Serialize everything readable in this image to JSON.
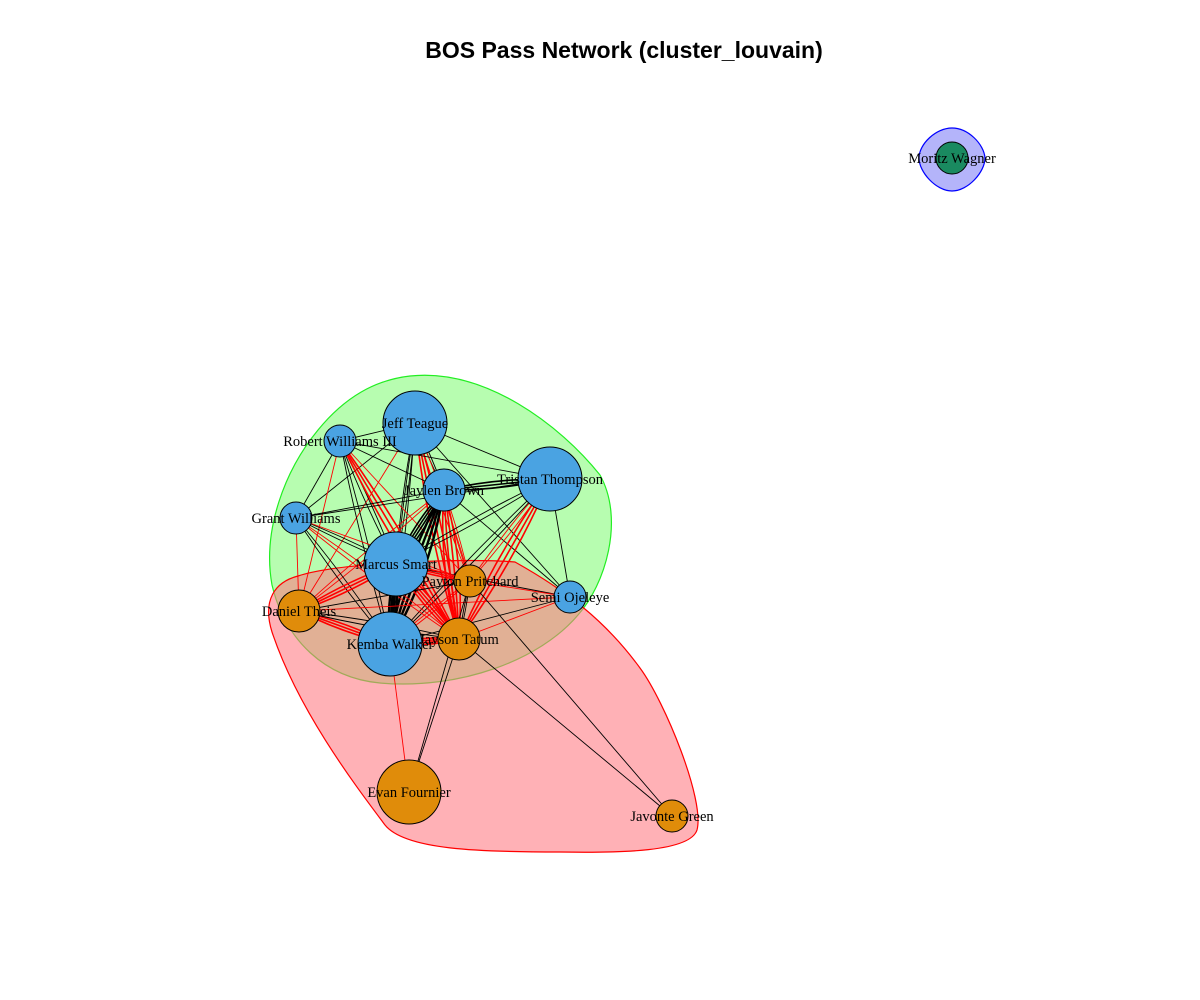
{
  "title": "BOS Pass Network (cluster_louvain)",
  "colors": {
    "cluster_green_fill": "#b7fdb0",
    "cluster_green_stroke": "#22ee22",
    "cluster_red_fill": "rgba(255,120,130,0.58)",
    "cluster_red_stroke": "#ff0000",
    "cluster_blue_fill": "#b4b4fa",
    "cluster_blue_stroke": "#0000ff",
    "node_blue": "#4aa3e2",
    "node_orange": "#e08c0a",
    "node_green": "#1a8a60",
    "edge_within": "#000000",
    "edge_between": "#ff0000"
  },
  "clusters": [
    {
      "id": "green",
      "members": [
        "Jeff Teague",
        "Robert Williams III",
        "Jaylen Brown",
        "Tristan Thompson",
        "Grant Williams",
        "Marcus Smart",
        "Semi Ojeleye",
        "Kemba Walker"
      ]
    },
    {
      "id": "red",
      "members": [
        "Daniel Theis",
        "Payton Pritchard",
        "Jayson Tatum",
        "Evan Fournier",
        "Javonte Green"
      ]
    },
    {
      "id": "blue",
      "members": [
        "Moritz Wagner"
      ]
    }
  ],
  "nodes": [
    {
      "id": "Jeff Teague",
      "label": "Jeff Teague",
      "group": "blue",
      "degree": "large"
    },
    {
      "id": "Robert Williams III",
      "label": "Robert Williams III",
      "group": "blue",
      "degree": "small"
    },
    {
      "id": "Jaylen Brown",
      "label": "Jaylen Brown",
      "group": "blue",
      "degree": "medium"
    },
    {
      "id": "Tristan Thompson",
      "label": "Tristan Thompson",
      "group": "blue",
      "degree": "large"
    },
    {
      "id": "Grant Williams",
      "label": "Grant Williams",
      "group": "blue",
      "degree": "small"
    },
    {
      "id": "Marcus Smart",
      "label": "Marcus Smart",
      "group": "blue",
      "degree": "large"
    },
    {
      "id": "Semi Ojeleye",
      "label": "Semi Ojeleye",
      "group": "blue",
      "degree": "small"
    },
    {
      "id": "Kemba Walker",
      "label": "Kemba Walker",
      "group": "blue",
      "degree": "large"
    },
    {
      "id": "Payton Pritchard",
      "label": "Payton Pritchard",
      "group": "orange",
      "degree": "small"
    },
    {
      "id": "Daniel Theis",
      "label": "Daniel Theis",
      "group": "orange",
      "degree": "medium"
    },
    {
      "id": "Jayson Tatum",
      "label": "Jayson Tatum",
      "group": "orange",
      "degree": "medium"
    },
    {
      "id": "Evan Fournier",
      "label": "Evan Fournier",
      "group": "orange",
      "degree": "large"
    },
    {
      "id": "Javonte Green",
      "label": "Javonte Green",
      "group": "orange",
      "degree": "small"
    },
    {
      "id": "Moritz Wagner",
      "label": "Moritz Wagner",
      "group": "green",
      "degree": "small"
    }
  ],
  "edges": [
    {
      "source": "Jeff Teague",
      "target": "Robert Williams III",
      "weight": 1,
      "type": "within"
    },
    {
      "source": "Jeff Teague",
      "target": "Jaylen Brown",
      "weight": 2,
      "type": "within"
    },
    {
      "source": "Jeff Teague",
      "target": "Tristan Thompson",
      "weight": 1,
      "type": "within"
    },
    {
      "source": "Jeff Teague",
      "target": "Grant Williams",
      "weight": 1,
      "type": "within"
    },
    {
      "source": "Jeff Teague",
      "target": "Marcus Smart",
      "weight": 2,
      "type": "within"
    },
    {
      "source": "Jeff Teague",
      "target": "Kemba Walker",
      "weight": 2,
      "type": "within"
    },
    {
      "source": "Jeff Teague",
      "target": "Semi Ojeleye",
      "weight": 1,
      "type": "within"
    },
    {
      "source": "Jeff Teague",
      "target": "Jayson Tatum",
      "weight": 3,
      "type": "between"
    },
    {
      "source": "Jeff Teague",
      "target": "Payton Pritchard",
      "weight": 2,
      "type": "between"
    },
    {
      "source": "Jeff Teague",
      "target": "Daniel Theis",
      "weight": 1,
      "type": "between"
    },
    {
      "source": "Robert Williams III",
      "target": "Jaylen Brown",
      "weight": 1,
      "type": "within"
    },
    {
      "source": "Robert Williams III",
      "target": "Marcus Smart",
      "weight": 2,
      "type": "within"
    },
    {
      "source": "Robert Williams III",
      "target": "Kemba Walker",
      "weight": 2,
      "type": "within"
    },
    {
      "source": "Robert Williams III",
      "target": "Grant Williams",
      "weight": 1,
      "type": "within"
    },
    {
      "source": "Robert Williams III",
      "target": "Tristan Thompson",
      "weight": 1,
      "type": "within"
    },
    {
      "source": "Robert Williams III",
      "target": "Jayson Tatum",
      "weight": 3,
      "type": "between"
    },
    {
      "source": "Robert Williams III",
      "target": "Payton Pritchard",
      "weight": 1,
      "type": "between"
    },
    {
      "source": "Robert Williams III",
      "target": "Daniel Theis",
      "weight": 1,
      "type": "between"
    },
    {
      "source": "Jaylen Brown",
      "target": "Tristan Thompson",
      "weight": 3,
      "type": "within"
    },
    {
      "source": "Jaylen Brown",
      "target": "Marcus Smart",
      "weight": 4,
      "type": "within"
    },
    {
      "source": "Jaylen Brown",
      "target": "Kemba Walker",
      "weight": 6,
      "type": "within"
    },
    {
      "source": "Jaylen Brown",
      "target": "Grant Williams",
      "weight": 1,
      "type": "within"
    },
    {
      "source": "Jaylen Brown",
      "target": "Semi Ojeleye",
      "weight": 1,
      "type": "within"
    },
    {
      "source": "Jaylen Brown",
      "target": "Jayson Tatum",
      "weight": 4,
      "type": "between"
    },
    {
      "source": "Jaylen Brown",
      "target": "Payton Pritchard",
      "weight": 2,
      "type": "between"
    },
    {
      "source": "Jaylen Brown",
      "target": "Daniel Theis",
      "weight": 2,
      "type": "between"
    },
    {
      "source": "Tristan Thompson",
      "target": "Marcus Smart",
      "weight": 2,
      "type": "within"
    },
    {
      "source": "Tristan Thompson",
      "target": "Kemba Walker",
      "weight": 2,
      "type": "within"
    },
    {
      "source": "Tristan Thompson",
      "target": "Semi Ojeleye",
      "weight": 1,
      "type": "within"
    },
    {
      "source": "Tristan Thompson",
      "target": "Grant Williams",
      "weight": 1,
      "type": "within"
    },
    {
      "source": "Tristan Thompson",
      "target": "Jayson Tatum",
      "weight": 3,
      "type": "between"
    },
    {
      "source": "Tristan Thompson",
      "target": "Payton Pritchard",
      "weight": 2,
      "type": "between"
    },
    {
      "source": "Grant Williams",
      "target": "Marcus Smart",
      "weight": 2,
      "type": "within"
    },
    {
      "source": "Grant Williams",
      "target": "Kemba Walker",
      "weight": 2,
      "type": "within"
    },
    {
      "source": "Grant Williams",
      "target": "Jayson Tatum",
      "weight": 2,
      "type": "between"
    },
    {
      "source": "Grant Williams",
      "target": "Daniel Theis",
      "weight": 1,
      "type": "between"
    },
    {
      "source": "Grant Williams",
      "target": "Payton Pritchard",
      "weight": 1,
      "type": "between"
    },
    {
      "source": "Marcus Smart",
      "target": "Kemba Walker",
      "weight": 5,
      "type": "within"
    },
    {
      "source": "Marcus Smart",
      "target": "Semi Ojeleye",
      "weight": 1,
      "type": "within"
    },
    {
      "source": "Marcus Smart",
      "target": "Jayson Tatum",
      "weight": 4,
      "type": "between"
    },
    {
      "source": "Marcus Smart",
      "target": "Payton Pritchard",
      "weight": 3,
      "type": "between"
    },
    {
      "source": "Marcus Smart",
      "target": "Daniel Theis",
      "weight": 3,
      "type": "between"
    },
    {
      "source": "Semi Ojeleye",
      "target": "Kemba Walker",
      "weight": 1,
      "type": "within"
    },
    {
      "source": "Semi Ojeleye",
      "target": "Jayson Tatum",
      "weight": 1,
      "type": "between"
    },
    {
      "source": "Semi Ojeleye",
      "target": "Payton Pritchard",
      "weight": 1,
      "type": "between"
    },
    {
      "source": "Semi Ojeleye",
      "target": "Daniel Theis",
      "weight": 1,
      "type": "between"
    },
    {
      "source": "Kemba Walker",
      "target": "Jayson Tatum",
      "weight": 4,
      "type": "between"
    },
    {
      "source": "Kemba Walker",
      "target": "Daniel Theis",
      "weight": 3,
      "type": "between"
    },
    {
      "source": "Kemba Walker",
      "target": "Payton Pritchard",
      "weight": 2,
      "type": "between"
    },
    {
      "source": "Kemba Walker",
      "target": "Evan Fournier",
      "weight": 1,
      "type": "between"
    },
    {
      "source": "Payton Pritchard",
      "target": "Jayson Tatum",
      "weight": 2,
      "type": "within"
    },
    {
      "source": "Payton Pritchard",
      "target": "Daniel Theis",
      "weight": 1,
      "type": "within"
    },
    {
      "source": "Daniel Theis",
      "target": "Jayson Tatum",
      "weight": 2,
      "type": "within"
    },
    {
      "source": "Jayson Tatum",
      "target": "Evan Fournier",
      "weight": 1,
      "type": "within"
    },
    {
      "source": "Payton Pritchard",
      "target": "Evan Fournier",
      "weight": 1,
      "type": "within"
    },
    {
      "source": "Jayson Tatum",
      "target": "Javonte Green",
      "weight": 1,
      "type": "within"
    },
    {
      "source": "Payton Pritchard",
      "target": "Javonte Green",
      "weight": 1,
      "type": "within"
    }
  ]
}
